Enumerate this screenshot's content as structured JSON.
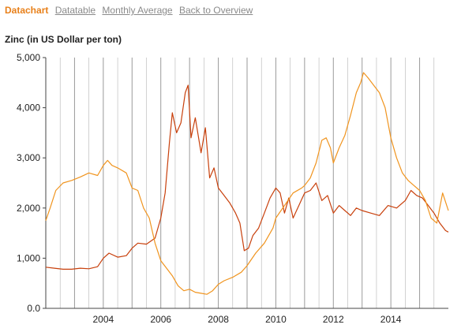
{
  "tabs": [
    {
      "label": "Datachart",
      "active": true
    },
    {
      "label": "Datatable",
      "active": false
    },
    {
      "label": "Monthly Average",
      "active": false
    },
    {
      "label": "Back to Overview",
      "active": false
    }
  ],
  "chart_data": {
    "type": "line",
    "title": "Zinc (in US Dollar per ton)",
    "xlabel": "",
    "ylabel": "",
    "xlim": [
      2002.0,
      2016.0
    ],
    "ylim": [
      0,
      5000
    ],
    "ytick_values": [
      0,
      1000,
      2000,
      3000,
      4000,
      5000
    ],
    "yticks": [
      "0.0",
      "1,000",
      "2,000",
      "3,000",
      "4,000",
      "5,000"
    ],
    "xtick_values": [
      2004,
      2006,
      2008,
      2010,
      2012,
      2014
    ],
    "xticks": [
      "2004",
      "2006",
      "2008",
      "2010",
      "2012",
      "2014"
    ],
    "grid": "vertical",
    "colors": {
      "series_red": "#c8400c",
      "series_orange": "#f0941e",
      "grid": "#b4b4b4",
      "axis": "#444444",
      "active_tab": "#e8801a",
      "inactive_tab": "#8a8a8a"
    },
    "series": [
      {
        "color": "#c8400c",
        "x": [
          2002.0,
          2002.3,
          2002.6,
          2002.9,
          2003.2,
          2003.5,
          2003.8,
          2004.0,
          2004.2,
          2004.5,
          2004.8,
          2005.0,
          2005.2,
          2005.5,
          2005.8,
          2006.0,
          2006.15,
          2006.3,
          2006.4,
          2006.55,
          2006.7,
          2006.85,
          2006.95,
          2007.05,
          2007.2,
          2007.4,
          2007.55,
          2007.7,
          2007.85,
          2008.0,
          2008.2,
          2008.4,
          2008.6,
          2008.75,
          2008.9,
          2009.05,
          2009.2,
          2009.4,
          2009.6,
          2009.8,
          2010.0,
          2010.15,
          2010.3,
          2010.45,
          2010.6,
          2010.8,
          2011.0,
          2011.2,
          2011.4,
          2011.6,
          2011.8,
          2012.0,
          2012.2,
          2012.4,
          2012.6,
          2012.8,
          2013.0,
          2013.3,
          2013.6,
          2013.9,
          2014.2,
          2014.5,
          2014.7,
          2014.9,
          2015.1,
          2015.3,
          2015.5,
          2015.7,
          2015.9,
          2016.0
        ],
        "values": [
          820,
          800,
          780,
          780,
          800,
          790,
          830,
          1000,
          1100,
          1020,
          1050,
          1200,
          1300,
          1280,
          1400,
          1800,
          2300,
          3300,
          3900,
          3500,
          3700,
          4300,
          4450,
          3400,
          3800,
          3100,
          3600,
          2600,
          2800,
          2400,
          2250,
          2100,
          1900,
          1700,
          1150,
          1200,
          1450,
          1600,
          1900,
          2200,
          2400,
          2300,
          1900,
          2200,
          1800,
          2050,
          2300,
          2350,
          2500,
          2150,
          2250,
          1900,
          2050,
          1950,
          1850,
          2000,
          1950,
          1900,
          1850,
          2050,
          2000,
          2150,
          2350,
          2250,
          2200,
          2050,
          1900,
          1700,
          1550,
          1520
        ]
      },
      {
        "color": "#f0941e",
        "x": [
          2002.0,
          2002.15,
          2002.35,
          2002.6,
          2002.9,
          2003.2,
          2003.5,
          2003.8,
          2004.0,
          2004.15,
          2004.3,
          2004.5,
          2004.8,
          2005.0,
          2005.2,
          2005.4,
          2005.6,
          2005.8,
          2006.0,
          2006.2,
          2006.4,
          2006.6,
          2006.8,
          2007.0,
          2007.2,
          2007.4,
          2007.6,
          2007.8,
          2008.0,
          2008.2,
          2008.5,
          2008.8,
          2009.0,
          2009.3,
          2009.6,
          2009.9,
          2010.0,
          2010.3,
          2010.6,
          2010.9,
          2011.0,
          2011.2,
          2011.4,
          2011.6,
          2011.75,
          2011.9,
          2012.0,
          2012.2,
          2012.4,
          2012.6,
          2012.8,
          2012.95,
          2013.05,
          2013.2,
          2013.4,
          2013.6,
          2013.8,
          2014.0,
          2014.2,
          2014.4,
          2014.6,
          2014.8,
          2015.0,
          2015.2,
          2015.4,
          2015.6,
          2015.8,
          2016.0
        ],
        "values": [
          1750,
          2000,
          2350,
          2500,
          2550,
          2620,
          2700,
          2650,
          2850,
          2950,
          2850,
          2800,
          2700,
          2400,
          2350,
          2000,
          1800,
          1300,
          950,
          800,
          650,
          450,
          350,
          380,
          320,
          300,
          280,
          350,
          480,
          550,
          620,
          720,
          850,
          1100,
          1300,
          1600,
          1800,
          2050,
          2300,
          2400,
          2450,
          2600,
          2900,
          3350,
          3400,
          3200,
          2900,
          3200,
          3450,
          3850,
          4300,
          4500,
          4700,
          4600,
          4450,
          4300,
          4000,
          3400,
          3000,
          2700,
          2550,
          2450,
          2350,
          2150,
          1800,
          1700,
          2300,
          1950
        ]
      }
    ]
  }
}
